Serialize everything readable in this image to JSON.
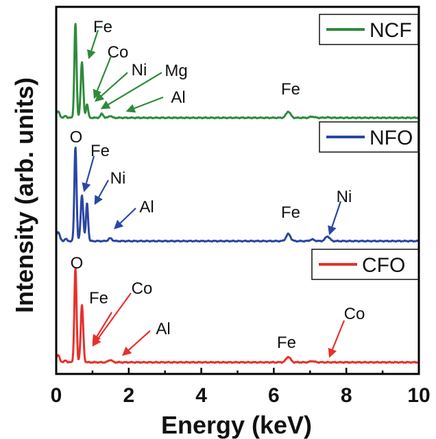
{
  "chart_data": {
    "type": "line",
    "xlabel": "Energy (keV)",
    "ylabel": "Intensity (arb. units)",
    "xlim": [
      0,
      10
    ],
    "xticks": [
      "0",
      "2",
      "4",
      "6",
      "8",
      "10"
    ],
    "grid": false,
    "legend_position": "top-right",
    "colors": {
      "NCF": "#2e8b3a",
      "NFO": "#2b46a3",
      "CFO": "#e8302b",
      "axis": "#000000",
      "arrow_ncf": "#2e8b3a",
      "arrow_nfo": "#2b46a3",
      "arrow_cfo": "#e8302b"
    },
    "series": [
      {
        "name": "NCF",
        "baseline": 2.0,
        "peaks": [
          {
            "e": 0.05,
            "h": 0.8,
            "w": 0.045
          },
          {
            "e": 0.26,
            "h": 0.25,
            "w": 0.03
          },
          {
            "e": 0.53,
            "h": 12.0,
            "w": 0.03
          },
          {
            "e": 0.71,
            "h": 7.0,
            "w": 0.035
          },
          {
            "e": 0.85,
            "h": 1.7,
            "w": 0.03
          },
          {
            "e": 1.26,
            "h": 0.5,
            "w": 0.04
          },
          {
            "e": 1.49,
            "h": 0.25,
            "w": 0.04
          },
          {
            "e": 6.4,
            "h": 0.8,
            "w": 0.06
          },
          {
            "e": 7.06,
            "h": 0.15,
            "w": 0.06
          },
          {
            "e": 7.48,
            "h": 0.05,
            "w": 0.06
          }
        ],
        "annotations": [
          {
            "label": "Fe",
            "text": [
              0.95,
              0.0
            ],
            "tip": [
              0.78,
              0.0
            ]
          },
          {
            "label": "Co",
            "text": [
              1.35,
              0.0
            ],
            "tip": [
              0.92,
              0.0
            ]
          },
          {
            "label": "Ni",
            "text": [
              2.0,
              0.0
            ],
            "tip": [
              1.0,
              0.0
            ]
          },
          {
            "label": "Mg",
            "text": [
              3.3,
              0.0
            ],
            "tip": [
              1.25,
              0.0
            ]
          },
          {
            "label": "Al",
            "text": [
              3.3,
              0.0
            ],
            "tip": [
              1.5,
              0.0
            ]
          },
          {
            "label": "Fe",
            "text": [
              6.4,
              0.0
            ],
            "tip": null
          }
        ]
      },
      {
        "name": "NFO",
        "baseline": 1.0,
        "peaks": [
          {
            "e": 0.05,
            "h": 1.2,
            "w": 0.045
          },
          {
            "e": 0.26,
            "h": 0.3,
            "w": 0.03
          },
          {
            "e": 0.53,
            "h": 12.0,
            "w": 0.03
          },
          {
            "e": 0.71,
            "h": 5.8,
            "w": 0.035
          },
          {
            "e": 0.85,
            "h": 4.8,
            "w": 0.03
          },
          {
            "e": 1.49,
            "h": 0.35,
            "w": 0.05
          },
          {
            "e": 6.4,
            "h": 0.9,
            "w": 0.06
          },
          {
            "e": 7.06,
            "h": 0.2,
            "w": 0.06
          },
          {
            "e": 7.48,
            "h": 0.6,
            "w": 0.06
          }
        ],
        "annotations": [
          {
            "label": "O",
            "text": [
              0.5,
              0.0
            ],
            "tip": null
          },
          {
            "label": "Fe",
            "text": [
              1.05,
              0.0
            ],
            "tip": [
              0.72,
              0.0
            ]
          },
          {
            "label": "Ni",
            "text": [
              1.55,
              0.0
            ],
            "tip": [
              0.92,
              0.0
            ]
          },
          {
            "label": "Al",
            "text": [
              2.45,
              0.0
            ],
            "tip": [
              1.55,
              0.0
            ]
          },
          {
            "label": "Fe",
            "text": [
              6.4,
              0.0
            ],
            "tip": null
          },
          {
            "label": "Ni",
            "text": [
              7.8,
              0.0
            ],
            "tip": [
              7.48,
              0.0
            ]
          }
        ]
      },
      {
        "name": "CFO",
        "baseline": 0.0,
        "peaks": [
          {
            "e": 0.05,
            "h": 0.9,
            "w": 0.045
          },
          {
            "e": 0.26,
            "h": 0.25,
            "w": 0.03
          },
          {
            "e": 0.53,
            "h": 12.0,
            "w": 0.03
          },
          {
            "e": 0.71,
            "h": 7.2,
            "w": 0.035
          },
          {
            "e": 1.49,
            "h": 0.3,
            "w": 0.05
          },
          {
            "e": 6.4,
            "h": 0.7,
            "w": 0.06
          },
          {
            "e": 7.06,
            "h": 0.15,
            "w": 0.06
          }
        ],
        "annotations": [
          {
            "label": "O",
            "text": [
              0.52,
              0.0
            ],
            "tip": null
          },
          {
            "label": "Fe",
            "text": [
              1.15,
              0.0
            ],
            "tip": [
              0.98,
              0.0
            ]
          },
          {
            "label": "Co",
            "text": [
              2.2,
              0.0
            ],
            "tip": [
              1.08,
              0.0
            ]
          },
          {
            "label": "Al",
            "text": [
              2.7,
              0.0
            ],
            "tip": [
              1.88,
              0.0
            ]
          },
          {
            "label": "Fe",
            "text": [
              6.3,
              0.0
            ],
            "tip": null
          },
          {
            "label": "Co",
            "text": [
              8.2,
              0.0
            ],
            "tip": [
              7.48,
              0.0
            ]
          }
        ]
      }
    ]
  }
}
